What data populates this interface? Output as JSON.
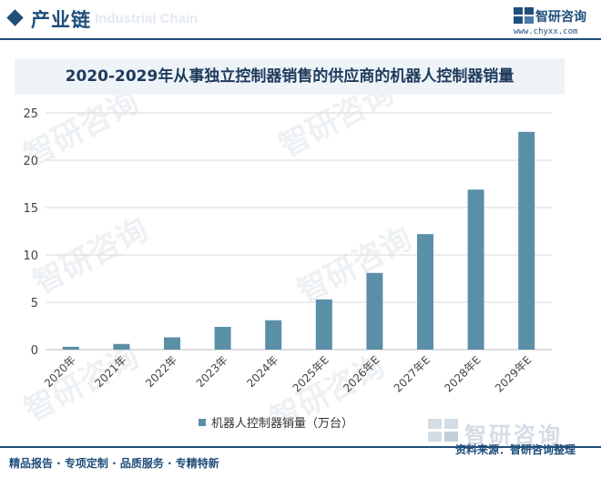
{
  "header": {
    "section_title": "产业链",
    "section_watermark": "Industrial Chain",
    "brand_name": "智研咨询",
    "brand_url": "www.chyxx.com"
  },
  "watermark_text": "智研咨询",
  "footer": {
    "left": "精品报告 · 专项定制 · 品质服务 · 专精特新",
    "source": "资料来源：智研咨询整理",
    "brand_big": "智研咨询"
  },
  "colors": {
    "bar": "#5b8fa8",
    "brand": "#1f4e79",
    "grid": "#d9d9d9"
  },
  "chart_data": {
    "type": "bar",
    "title": "2020-2029年从事独立控制器销售的供应商的机器人控制器销量",
    "categories": [
      "2020年",
      "2021年",
      "2022年",
      "2023年",
      "2024年",
      "2025年E",
      "2026年E",
      "2027年E",
      "2028年E",
      "2029年E"
    ],
    "series": [
      {
        "name": "机器人控制器销量（万台）",
        "values": [
          0.3,
          0.6,
          1.3,
          2.4,
          3.1,
          5.3,
          8.1,
          12.2,
          16.9,
          23.0
        ]
      }
    ],
    "yticks": [
      0,
      5,
      10,
      15,
      20,
      25
    ],
    "ylim": [
      0,
      25
    ],
    "grid": true,
    "legend_position": "bottom"
  }
}
